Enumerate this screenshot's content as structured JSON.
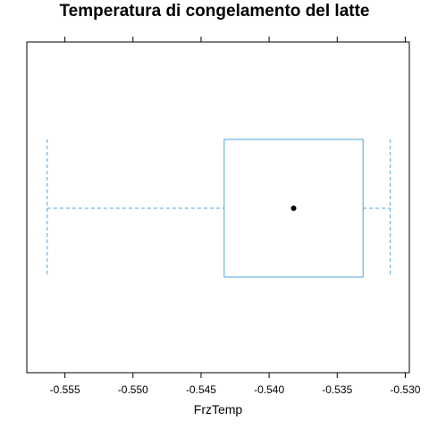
{
  "chart_data": {
    "type": "box",
    "title": "Temperatura di congelamento del latte",
    "xlabel": "FrzTemp",
    "ylabel": "",
    "xlim": [
      -0.5578,
      -0.5297
    ],
    "ticks": [
      {
        "value": -0.555,
        "label": "-0.555"
      },
      {
        "value": -0.55,
        "label": "-0.550"
      },
      {
        "value": -0.545,
        "label": "-0.545"
      },
      {
        "value": -0.54,
        "label": "-0.540"
      },
      {
        "value": -0.535,
        "label": "-0.535"
      },
      {
        "value": -0.53,
        "label": "-0.530"
      }
    ],
    "box": {
      "whisker_low": -0.5563,
      "q1": -0.5433,
      "median": -0.5382,
      "q3": -0.5331,
      "whisker_high": -0.5311
    },
    "color": "#4fa5d8",
    "median_color": "#000000",
    "grid": false
  }
}
